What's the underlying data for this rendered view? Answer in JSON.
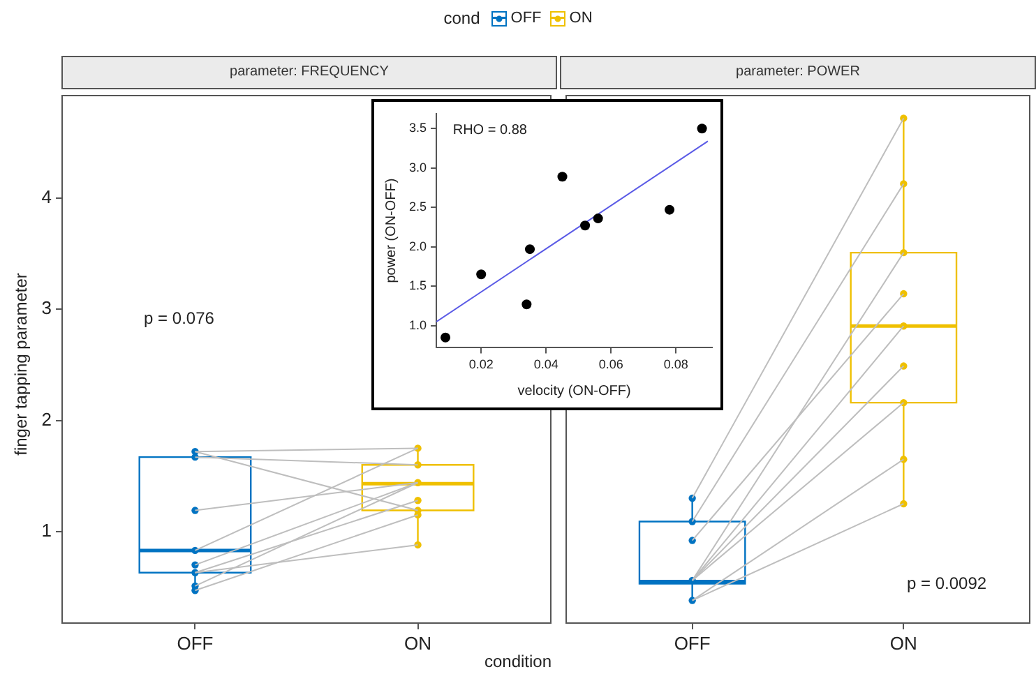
{
  "chart_data": [
    {
      "type": "box",
      "title": "parameter: FREQUENCY",
      "ylabel": "finger tapping parameter",
      "xlabel": "condition",
      "legend_title": "cond",
      "legend": "top",
      "grid": false,
      "categories": [
        "OFF",
        "ON"
      ],
      "ylim": [
        0.17,
        4.93
      ],
      "yticks": [
        1,
        2,
        3,
        4
      ],
      "annotations": [
        "p = 0.076"
      ],
      "series": [
        {
          "name": "OFF",
          "color": "#0073c2",
          "boxes": [
            {
              "low": 0.47,
              "q1": 0.63,
              "median": 0.83,
              "q3": 1.67,
              "high": 1.72
            },
            null
          ]
        },
        {
          "name": "ON",
          "color": "#efc000",
          "boxes": [
            null,
            {
              "low": 0.88,
              "q1": 1.19,
              "median": 1.43,
              "q3": 1.6,
              "high": 1.77
            }
          ]
        },
        {
          "type": "line",
          "color": "#bebebe",
          "marker": "none",
          "values": [
            1.72,
            1.75
          ]
        },
        {
          "type": "line",
          "color": "#bebebe",
          "marker": "none",
          "values": [
            1.72,
            1.19
          ]
        },
        {
          "type": "line",
          "color": "#bebebe",
          "marker": "none",
          "values": [
            1.67,
            1.6
          ]
        },
        {
          "type": "line",
          "color": "#bebebe",
          "marker": "none",
          "values": [
            1.19,
            1.44
          ]
        },
        {
          "type": "line",
          "color": "#bebebe",
          "marker": "none",
          "values": [
            0.83,
            1.75
          ]
        },
        {
          "type": "line",
          "color": "#bebebe",
          "marker": "none",
          "values": [
            0.7,
            1.44
          ]
        },
        {
          "type": "line",
          "color": "#bebebe",
          "marker": "none",
          "values": [
            0.63,
            1.28
          ]
        },
        {
          "type": "line",
          "color": "#bebebe",
          "marker": "none",
          "values": [
            0.63,
            0.88
          ]
        },
        {
          "type": "line",
          "color": "#bebebe",
          "marker": "none",
          "values": [
            0.51,
            1.44
          ]
        },
        {
          "type": "line",
          "color": "#bebebe",
          "marker": "none",
          "values": [
            0.47,
            1.15
          ]
        },
        {
          "type": "scatter",
          "color": "#0073c2",
          "marker": "circle",
          "x": [
            "OFF",
            "OFF",
            "OFF",
            "OFF",
            "OFF",
            "OFF",
            "OFF",
            "OFF"
          ],
          "values": [
            1.72,
            1.67,
            1.19,
            0.83,
            0.7,
            0.63,
            0.51,
            0.47
          ]
        },
        {
          "type": "scatter",
          "color": "#efc000",
          "marker": "circle",
          "x": [
            "ON",
            "ON",
            "ON",
            "ON",
            "ON",
            "ON",
            "ON"
          ],
          "values": [
            1.75,
            1.6,
            1.44,
            1.28,
            1.19,
            1.15,
            0.88
          ]
        }
      ]
    },
    {
      "type": "box",
      "title": "parameter: POWER",
      "grid": false,
      "tick_labels": "x",
      "categories": [
        "OFF",
        "ON"
      ],
      "ylim": [
        0.17,
        4.93
      ],
      "yticks": [
        1,
        2,
        3,
        4
      ],
      "annotations": [
        "p = 0.0092"
      ],
      "series": [
        {
          "color": "#0073c2",
          "boxes": [
            {
              "low": 0.38,
              "q1": 0.53,
              "median": 0.55,
              "q3": 1.09,
              "high": 1.3
            },
            null
          ]
        },
        {
          "color": "#efc000",
          "boxes": [
            null,
            {
              "low": 1.25,
              "q1": 2.16,
              "median": 2.85,
              "q3": 3.51,
              "high": 4.72
            }
          ]
        },
        {
          "type": "line",
          "color": "#bebebe",
          "marker": "none",
          "values": [
            1.3,
            4.72
          ]
        },
        {
          "type": "line",
          "color": "#bebebe",
          "marker": "none",
          "values": [
            1.09,
            4.13
          ]
        },
        {
          "type": "line",
          "color": "#bebebe",
          "marker": "none",
          "values": [
            0.56,
            3.51
          ]
        },
        {
          "type": "line",
          "color": "#bebebe",
          "marker": "none",
          "values": [
            0.92,
            3.14
          ]
        },
        {
          "type": "line",
          "color": "#bebebe",
          "marker": "none",
          "values": [
            0.56,
            2.85
          ]
        },
        {
          "type": "line",
          "color": "#bebebe",
          "marker": "none",
          "values": [
            0.56,
            2.49
          ]
        },
        {
          "type": "line",
          "color": "#bebebe",
          "marker": "none",
          "values": [
            0.56,
            2.16
          ]
        },
        {
          "type": "line",
          "color": "#bebebe",
          "marker": "none",
          "values": [
            0.38,
            1.65
          ]
        },
        {
          "type": "line",
          "color": "#bebebe",
          "marker": "none",
          "values": [
            0.38,
            1.25
          ]
        },
        {
          "type": "scatter",
          "color": "#0073c2",
          "marker": "circle",
          "x": [
            "OFF",
            "OFF",
            "OFF",
            "OFF",
            "OFF"
          ],
          "values": [
            1.3,
            1.09,
            0.92,
            0.56,
            0.38
          ]
        },
        {
          "type": "scatter",
          "color": "#efc000",
          "marker": "circle",
          "x": [
            "ON",
            "ON",
            "ON",
            "ON",
            "ON",
            "ON",
            "ON",
            "ON",
            "ON"
          ],
          "values": [
            4.72,
            4.13,
            3.51,
            3.14,
            2.85,
            2.49,
            2.16,
            1.65,
            1.25
          ]
        }
      ]
    },
    {
      "type": "scatter",
      "xlabel": "velocity (ON-OFF)",
      "ylabel": "power (ON-OFF)",
      "grid": false,
      "xlim": [
        0.0062,
        0.0911
      ],
      "xticks": [
        0.02,
        0.04,
        0.06,
        0.08
      ],
      "ylim": [
        0.72,
        3.69
      ],
      "yticks": [
        {
          "value": 1,
          "label": "1.0"
        },
        {
          "value": 1.5,
          "label": "1.5"
        },
        {
          "value": 2,
          "label": "2.0"
        },
        {
          "value": 2.5,
          "label": "2.5"
        },
        {
          "value": 3,
          "label": "3.0"
        },
        {
          "value": 3.5,
          "label": "3.5"
        }
      ],
      "annotations": [
        "RHO = 0.88"
      ],
      "series": [
        {
          "color": "#000000",
          "marker": "circle",
          "x": [
            0.009,
            0.02,
            0.035,
            0.034,
            0.045,
            0.052,
            0.056,
            0.078,
            0.088
          ],
          "values": [
            0.85,
            1.65,
            1.97,
            1.27,
            2.89,
            2.27,
            2.36,
            2.47,
            3.5
          ]
        },
        {
          "type": "line",
          "color": "#5a5ae6",
          "marker": "none",
          "x": [
            0.0062,
            0.0898
          ],
          "values": [
            1.05,
            3.34
          ]
        }
      ]
    }
  ]
}
